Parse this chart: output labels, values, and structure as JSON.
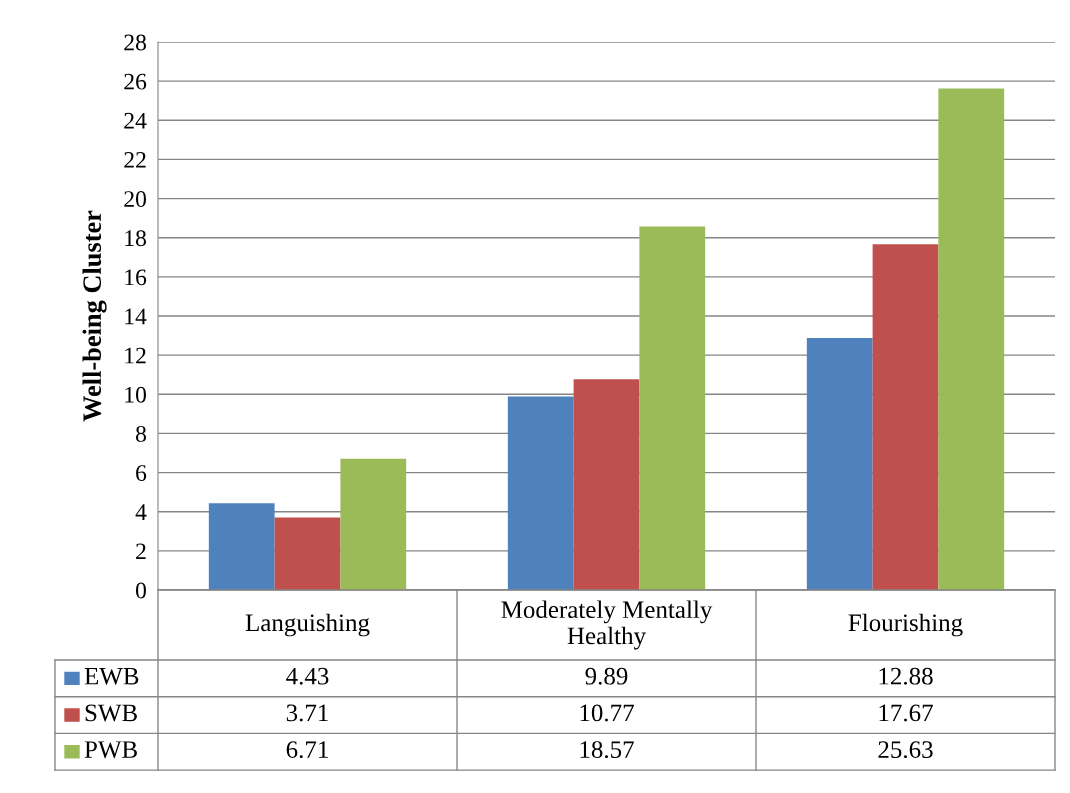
{
  "chart_data": {
    "type": "bar",
    "ylabel": "Well-being Cluster",
    "categories": [
      "Languishing",
      "Moderately Mentally\nHealthy",
      "Flourishing"
    ],
    "series": [
      {
        "name": "EWB",
        "color": "#4f81bd",
        "values": [
          4.43,
          9.89,
          12.88
        ]
      },
      {
        "name": "SWB",
        "color": "#c0504d",
        "values": [
          3.71,
          10.77,
          17.67
        ]
      },
      {
        "name": "PWB",
        "color": "#9bbb59",
        "values": [
          6.71,
          18.57,
          25.63
        ]
      }
    ],
    "ylim": [
      0,
      28
    ],
    "yticks": [
      0,
      2,
      4,
      6,
      8,
      10,
      12,
      14,
      16,
      18,
      20,
      22,
      24,
      26,
      28
    ],
    "grid": "y",
    "legend": "bottom",
    "data_labels": true
  }
}
